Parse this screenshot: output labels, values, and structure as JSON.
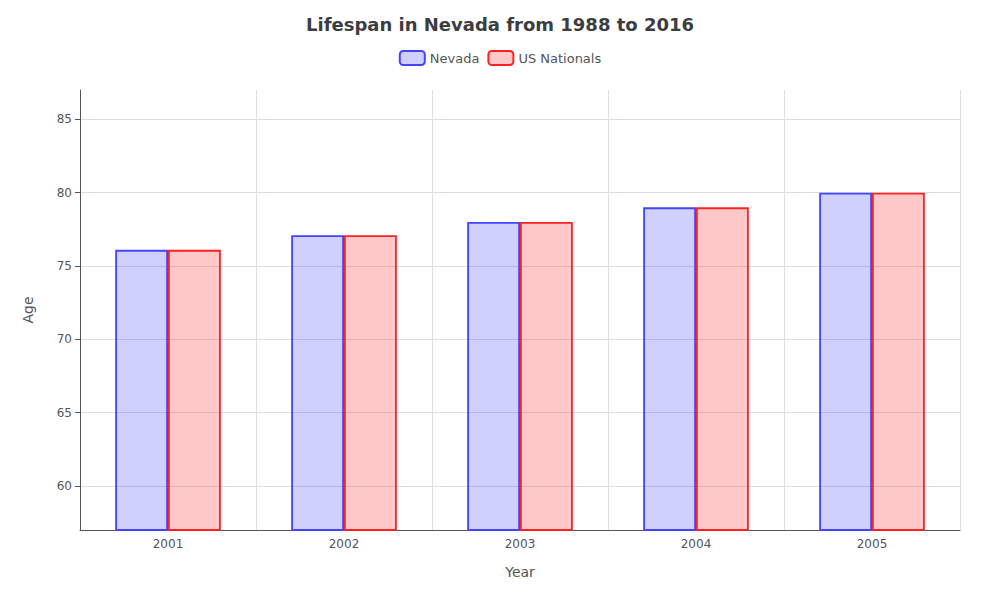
{
  "chart_data": {
    "type": "bar",
    "title": "Lifespan in Nevada from 1988 to 2016",
    "x_label": "Year",
    "y_label": "Age",
    "categories": [
      "2001",
      "2002",
      "2003",
      "2004",
      "2005"
    ],
    "series": [
      {
        "name": "Nevada",
        "color": "#4444ff",
        "values": [
          76.1,
          77.1,
          78.0,
          79.0,
          80.0
        ]
      },
      {
        "name": "US Nationals",
        "color": "#ff2222",
        "values": [
          76.1,
          77.1,
          78.0,
          79.0,
          80.0
        ]
      }
    ],
    "ylim": [
      57,
      87
    ],
    "yticks": [
      60,
      65,
      70,
      75,
      80,
      85
    ],
    "grid": true,
    "legend": "top"
  }
}
